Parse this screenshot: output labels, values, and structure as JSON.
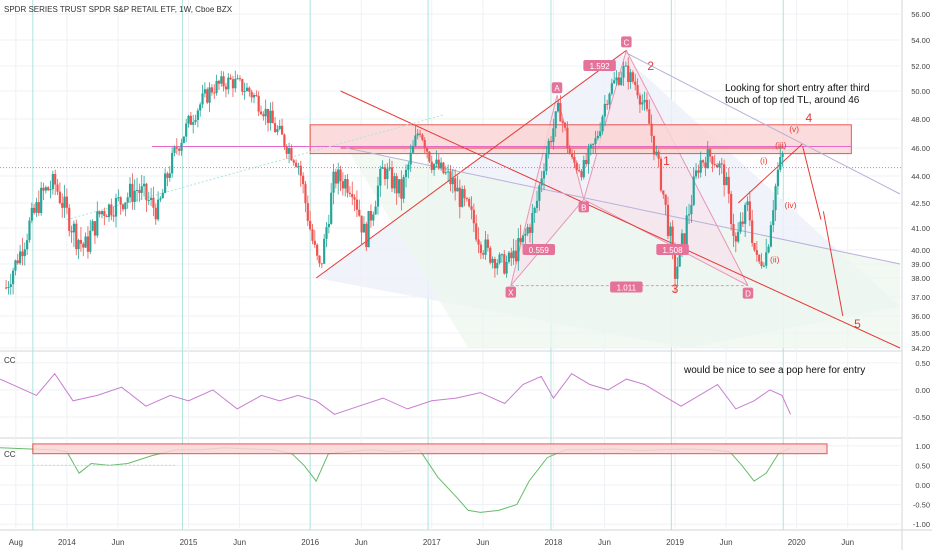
{
  "header": {
    "symbol_title": "SPDR SERIES TRUST SPDR S&P RETAIL ETF, 1W, Cboe BZX"
  },
  "colors": {
    "up_candle": "#26a69a",
    "down_candle": "#ef5350",
    "annotation_red": "#e53935",
    "pattern_label_bg": "#e57399",
    "cc_line": "#c77dd0",
    "cc2_line_up": "#66bb6a",
    "grid": "#eef1f5",
    "vertical_marker": "#aee4dc",
    "box_fill": "#fbd5d5"
  },
  "chart_data": [
    {
      "type": "candlestick",
      "pane": "price",
      "title": "SPDR SERIES TRUST SPDR S&P RETAIL ETF, 1W, Cboe BZX",
      "ylim": [
        34.2,
        56.8
      ],
      "y_ticks": [
        "56.00",
        "54.00",
        "52.00",
        "50.00",
        "48.00",
        "46.00",
        "44.00",
        "42.50",
        "41.00",
        "40.00",
        "39.00",
        "38.00",
        "37.00",
        "36.00",
        "35.00",
        "34.20"
      ],
      "y_tick_values": [
        56,
        54,
        52,
        50,
        48,
        46,
        44,
        42.5,
        41,
        40,
        39,
        38,
        37,
        36,
        35,
        34.2
      ],
      "x_ticks": [
        "Aug",
        "2014",
        "Jun",
        "2015",
        "Jun",
        "2016",
        "Jun",
        "2017",
        "Jun",
        "2018",
        "Jun",
        "2019",
        "Jun",
        "2020",
        "Jun"
      ],
      "x_tick_values": [
        2013.58,
        2014.0,
        2014.42,
        2015.0,
        2015.42,
        2016.0,
        2016.42,
        2017.0,
        2017.42,
        2018.0,
        2018.42,
        2019.0,
        2019.42,
        2020.0,
        2020.42
      ],
      "xlim": [
        2013.45,
        2020.85
      ],
      "close_approx": [
        [
          2013.5,
          37.5
        ],
        [
          2013.65,
          40.5
        ],
        [
          2013.8,
          43.0
        ],
        [
          2013.9,
          43.6
        ],
        [
          2014.05,
          41.0
        ],
        [
          2014.15,
          40.0
        ],
        [
          2014.28,
          42.0
        ],
        [
          2014.42,
          42.5
        ],
        [
          2014.58,
          43.3
        ],
        [
          2014.75,
          42.0
        ],
        [
          2014.9,
          46.0
        ],
        [
          2015.05,
          48.5
        ],
        [
          2015.2,
          50.3
        ],
        [
          2015.35,
          50.8
        ],
        [
          2015.5,
          50.0
        ],
        [
          2015.6,
          49.0
        ],
        [
          2015.7,
          47.5
        ],
        [
          2015.8,
          46.3
        ],
        [
          2015.9,
          45.0
        ],
        [
          2016.0,
          41.0
        ],
        [
          2016.08,
          38.6
        ],
        [
          2016.2,
          44.0
        ],
        [
          2016.35,
          43.5
        ],
        [
          2016.45,
          40.5
        ],
        [
          2016.6,
          44.5
        ],
        [
          2016.75,
          43.0
        ],
        [
          2016.9,
          47.5
        ],
        [
          2017.0,
          45.0
        ],
        [
          2017.15,
          43.8
        ],
        [
          2017.3,
          42.0
        ],
        [
          2017.45,
          39.8
        ],
        [
          2017.6,
          38.9
        ],
        [
          2017.75,
          40.3
        ],
        [
          2017.85,
          42.0
        ],
        [
          2017.95,
          46.0
        ],
        [
          2018.05,
          48.8
        ],
        [
          2018.15,
          45.0
        ],
        [
          2018.25,
          44.5
        ],
        [
          2018.35,
          46.5
        ],
        [
          2018.45,
          50.0
        ],
        [
          2018.58,
          51.7
        ],
        [
          2018.68,
          50.5
        ],
        [
          2018.78,
          48.0
        ],
        [
          2018.88,
          44.0
        ],
        [
          2018.96,
          40.5
        ],
        [
          2019.0,
          38.3
        ],
        [
          2019.1,
          41.5
        ],
        [
          2019.2,
          45.0
        ],
        [
          2019.3,
          45.5
        ],
        [
          2019.4,
          44.2
        ],
        [
          2019.5,
          40.2
        ],
        [
          2019.6,
          42.3
        ],
        [
          2019.68,
          38.9
        ],
        [
          2019.75,
          39.8
        ],
        [
          2019.85,
          44.5
        ],
        [
          2019.9,
          45.8
        ]
      ],
      "annotations": {
        "note_top": "Looking for short entry after third touch of top red TL, around 46",
        "harmonic_points": [
          "X",
          "A",
          "B",
          "C",
          "D"
        ],
        "ratios": [
          "1.592",
          "0.559",
          "1.508",
          "1.011"
        ],
        "waves_major": [
          "1",
          "2",
          "3",
          "4",
          "5"
        ],
        "waves_minor": [
          "(i)",
          "(ii)",
          "(iii)",
          "(iv)",
          "(v)"
        ]
      },
      "grid": true
    },
    {
      "type": "line",
      "pane": "indicator",
      "title": "CC",
      "ylim": [
        -0.85,
        0.7
      ],
      "y_ticks": [
        "0.50",
        "0.00",
        "-0.50"
      ],
      "y_tick_values": [
        0.5,
        0.0,
        -0.5
      ],
      "annotation": "would be nice to see a pop here for entry",
      "series": [
        {
          "x": [
            2013.45,
            2013.6,
            2013.75,
            2013.9,
            2014.05,
            2014.25,
            2014.45,
            2014.65,
            2014.85,
            2015.0,
            2015.2,
            2015.4,
            2015.6,
            2015.75,
            2015.9,
            2016.05,
            2016.2,
            2016.4,
            2016.6,
            2016.8,
            2017.0,
            2017.2,
            2017.4,
            2017.6,
            2017.75,
            2017.9,
            2018.0,
            2018.15,
            2018.3,
            2018.45,
            2018.6,
            2018.75,
            2018.9,
            2019.05,
            2019.2,
            2019.35,
            2019.5,
            2019.65,
            2019.78,
            2019.88,
            2019.95
          ],
          "values": [
            0.2,
            0.05,
            -0.1,
            0.3,
            -0.2,
            -0.1,
            0.05,
            -0.3,
            -0.1,
            -0.2,
            0.0,
            -0.35,
            -0.1,
            -0.2,
            -0.1,
            -0.2,
            -0.45,
            -0.3,
            -0.15,
            -0.35,
            -0.2,
            -0.15,
            -0.05,
            -0.25,
            0.1,
            0.25,
            -0.15,
            0.3,
            0.1,
            0.0,
            0.2,
            0.1,
            -0.1,
            -0.3,
            -0.1,
            0.1,
            -0.35,
            -0.2,
            0.0,
            -0.1,
            -0.45
          ]
        }
      ],
      "grid": true
    },
    {
      "type": "line",
      "pane": "indicator",
      "title": "CC",
      "ylim": [
        -1.1,
        1.15
      ],
      "y_ticks": [
        "1.00",
        "0.50",
        "0.00",
        "-0.50",
        "-1.00"
      ],
      "y_tick_values": [
        1.0,
        0.5,
        0.0,
        -0.5,
        -1.0
      ],
      "series": [
        {
          "x": [
            2013.45,
            2013.7,
            2013.9,
            2014.0,
            2014.1,
            2014.2,
            2014.35,
            2014.5,
            2014.7,
            2014.9,
            2015.1,
            2015.3,
            2015.5,
            2015.7,
            2015.85,
            2015.95,
            2016.05,
            2016.15,
            2016.3,
            2016.5,
            2016.7,
            2016.9,
            2017.05,
            2017.2,
            2017.3,
            2017.4,
            2017.55,
            2017.7,
            2017.8,
            2017.95,
            2018.1,
            2018.3,
            2018.5,
            2018.7,
            2018.9,
            2019.1,
            2019.3,
            2019.45,
            2019.55,
            2019.65,
            2019.75,
            2019.85,
            2019.95
          ],
          "values": [
            0.95,
            0.92,
            0.9,
            0.85,
            0.3,
            0.55,
            0.5,
            0.55,
            0.75,
            0.9,
            0.9,
            0.95,
            0.92,
            0.9,
            0.8,
            0.5,
            0.1,
            0.8,
            0.85,
            0.9,
            0.85,
            0.9,
            0.2,
            -0.3,
            -0.65,
            -0.7,
            -0.65,
            -0.5,
            0.1,
            0.7,
            0.9,
            0.9,
            0.92,
            0.88,
            0.9,
            0.92,
            0.9,
            0.85,
            0.5,
            0.1,
            0.3,
            0.8,
            0.95
          ]
        }
      ],
      "grid": true
    }
  ]
}
